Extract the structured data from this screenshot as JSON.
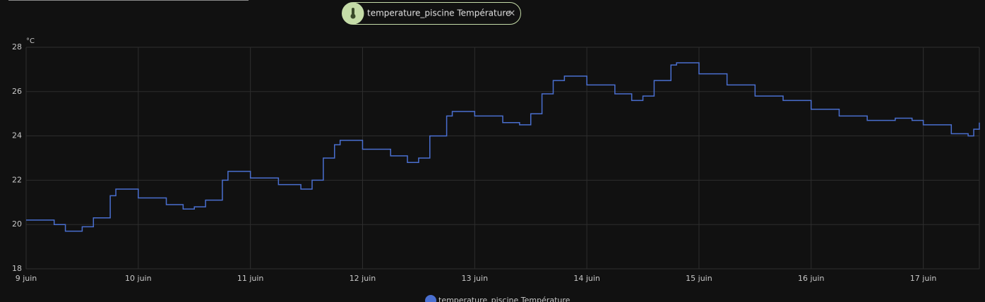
{
  "chip": {
    "label": "temperature_piscine Température"
  },
  "chart_data": {
    "type": "step-line",
    "y_label": "°C",
    "x": [
      9,
      9.25,
      9.35,
      9.5,
      9.6,
      9.75,
      9.8,
      10,
      10.25,
      10.4,
      10.5,
      10.6,
      10.75,
      10.8,
      11,
      11.25,
      11.45,
      11.55,
      11.65,
      11.75,
      11.8,
      12,
      12.25,
      12.4,
      12.5,
      12.6,
      12.75,
      12.8,
      13,
      13.25,
      13.4,
      13.5,
      13.6,
      13.7,
      13.8,
      14,
      14.25,
      14.4,
      14.5,
      14.6,
      14.75,
      14.8,
      15,
      15.25,
      15.5,
      15.75,
      16,
      16.25,
      16.5,
      16.75,
      16.9,
      17,
      17.25,
      17.4,
      17.45,
      17.5
    ],
    "series": [
      {
        "name": "temperature_piscine Température",
        "color": "#4a6fd0",
        "values": [
          20.2,
          20.0,
          19.7,
          19.9,
          20.3,
          21.3,
          21.6,
          21.2,
          20.9,
          20.7,
          20.8,
          21.1,
          22.0,
          22.4,
          22.1,
          21.8,
          21.6,
          22.0,
          23.0,
          23.6,
          23.8,
          23.4,
          23.1,
          22.8,
          23.0,
          24.0,
          24.9,
          25.1,
          24.9,
          24.6,
          24.5,
          25.0,
          25.9,
          26.5,
          26.7,
          26.3,
          25.9,
          25.6,
          25.8,
          26.5,
          27.2,
          27.3,
          26.8,
          26.3,
          25.8,
          25.6,
          25.2,
          24.9,
          24.7,
          24.8,
          24.7,
          24.5,
          24.1,
          24.0,
          24.3,
          24.6
        ]
      }
    ],
    "xlim": [
      9,
      17.5
    ],
    "xticks": [
      {
        "value": 9,
        "label": "9 juin"
      },
      {
        "value": 10,
        "label": "10 juin"
      },
      {
        "value": 11,
        "label": "11 juin"
      },
      {
        "value": 12,
        "label": "12 juin"
      },
      {
        "value": 13,
        "label": "13 juin"
      },
      {
        "value": 14,
        "label": "14 juin"
      },
      {
        "value": 15,
        "label": "15 juin"
      },
      {
        "value": 16,
        "label": "16 juin"
      },
      {
        "value": 17,
        "label": "17 juin"
      }
    ],
    "ylim": [
      18,
      28
    ],
    "yticks": [
      18,
      20,
      22,
      24,
      26,
      28
    ],
    "grid": true
  }
}
